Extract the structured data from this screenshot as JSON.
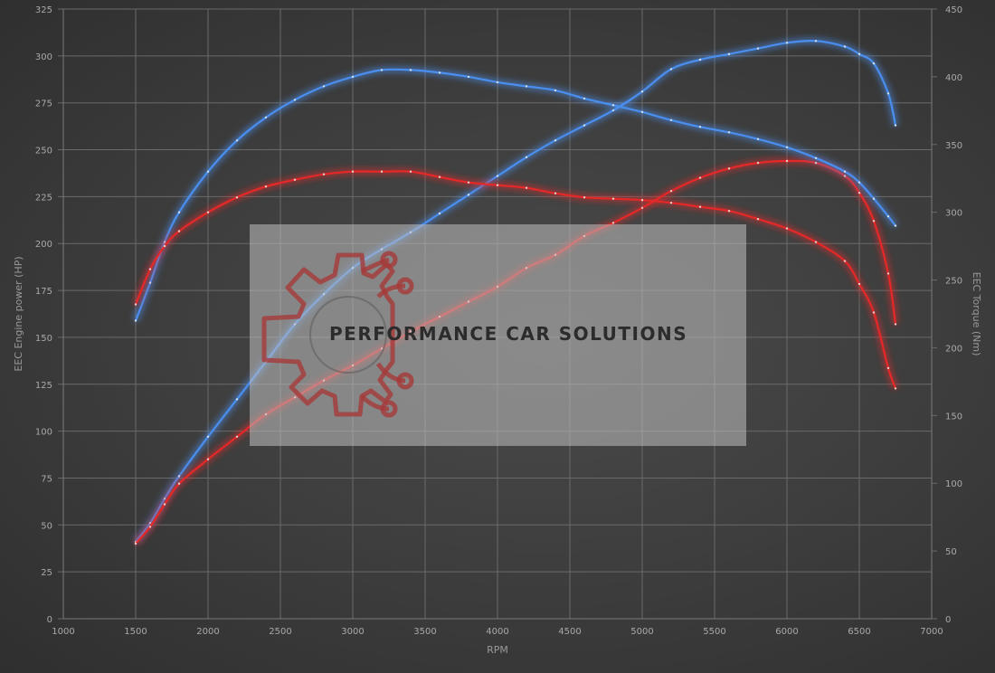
{
  "chart_data": {
    "type": "line",
    "x_label": "RPM",
    "y_left_label": "EEC Engine power (HP)",
    "y_right_label": "EEC Torque (Nm)",
    "x_ticks": [
      "1000",
      "1500",
      "2000",
      "2500",
      "3000",
      "3500",
      "4000",
      "4500",
      "5000",
      "5500",
      "6000",
      "6500",
      "7000"
    ],
    "y_left_ticks": [
      "0",
      "25",
      "50",
      "75",
      "100",
      "125",
      "150",
      "175",
      "200",
      "225",
      "250",
      "275",
      "300",
      "325"
    ],
    "y_right_ticks": [
      "0",
      "50",
      "100",
      "150",
      "200",
      "250",
      "300",
      "350",
      "400",
      "450"
    ],
    "xlim": [
      1000,
      7000
    ],
    "y_left_lim": [
      0,
      325
    ],
    "y_right_lim": [
      0,
      450
    ],
    "grid": true,
    "series": [
      {
        "id": "tuned_power",
        "axis": "left",
        "color": "#4a8ff0",
        "x": [
          1500,
          1600,
          1700,
          1800,
          2000,
          2200,
          2400,
          2600,
          2800,
          3000,
          3200,
          3400,
          3600,
          3800,
          4000,
          4200,
          4400,
          4600,
          4800,
          5000,
          5200,
          5400,
          5600,
          5800,
          6000,
          6200,
          6400,
          6500,
          6600,
          6700,
          6750
        ],
        "y": [
          41,
          51,
          64,
          76,
          97,
          117,
          137,
          157,
          173,
          187,
          197,
          206,
          216,
          226,
          236,
          246,
          255,
          263,
          271,
          281,
          293,
          298,
          301,
          304,
          307,
          308,
          305,
          301,
          296,
          280,
          263
        ]
      },
      {
        "id": "stock_power",
        "axis": "left",
        "color": "#e52828",
        "x": [
          1500,
          1600,
          1700,
          1800,
          2000,
          2200,
          2400,
          2600,
          2800,
          3000,
          3200,
          3400,
          3600,
          3800,
          4000,
          4200,
          4400,
          4600,
          4800,
          5000,
          5200,
          5400,
          5600,
          5800,
          6000,
          6200,
          6400,
          6500,
          6600,
          6700,
          6750
        ],
        "y": [
          40,
          49,
          61,
          72,
          85,
          97,
          109,
          118,
          127,
          135,
          144,
          153,
          161,
          169,
          177,
          187,
          194,
          204,
          211,
          219,
          228,
          235,
          240,
          243,
          244,
          243,
          236,
          227,
          212,
          184,
          157
        ]
      },
      {
        "id": "tuned_torque",
        "axis": "right",
        "color": "#4a8ff0",
        "x": [
          1500,
          1600,
          1700,
          1800,
          2000,
          2200,
          2400,
          2600,
          2800,
          3000,
          3200,
          3400,
          3600,
          3800,
          4000,
          4200,
          4400,
          4600,
          4800,
          5000,
          5200,
          5400,
          5600,
          5800,
          6000,
          6200,
          6400,
          6500,
          6600,
          6700,
          6750
        ],
        "y": [
          220,
          248,
          278,
          300,
          330,
          353,
          370,
          383,
          393,
          400,
          405,
          405,
          403,
          400,
          396,
          393,
          390,
          384,
          379,
          374,
          368,
          363,
          359,
          354,
          348,
          340,
          330,
          322,
          310,
          297,
          290
        ]
      },
      {
        "id": "stock_torque",
        "axis": "right",
        "color": "#e52828",
        "x": [
          1500,
          1600,
          1700,
          1800,
          2000,
          2200,
          2400,
          2600,
          2800,
          3000,
          3200,
          3400,
          3600,
          3800,
          4000,
          4200,
          4400,
          4600,
          4800,
          5000,
          5200,
          5400,
          5600,
          5800,
          6000,
          6200,
          6400,
          6500,
          6600,
          6700,
          6750
        ],
        "y": [
          232,
          258,
          275,
          286,
          300,
          311,
          319,
          324,
          328,
          330,
          330,
          330,
          326,
          322,
          320,
          318,
          314,
          311,
          310,
          309,
          307,
          304,
          301,
          295,
          288,
          278,
          264,
          247,
          226,
          185,
          170
        ]
      }
    ]
  },
  "watermark": {
    "brand_name": "PERFORMANCE CAR SOLUTIONS"
  }
}
